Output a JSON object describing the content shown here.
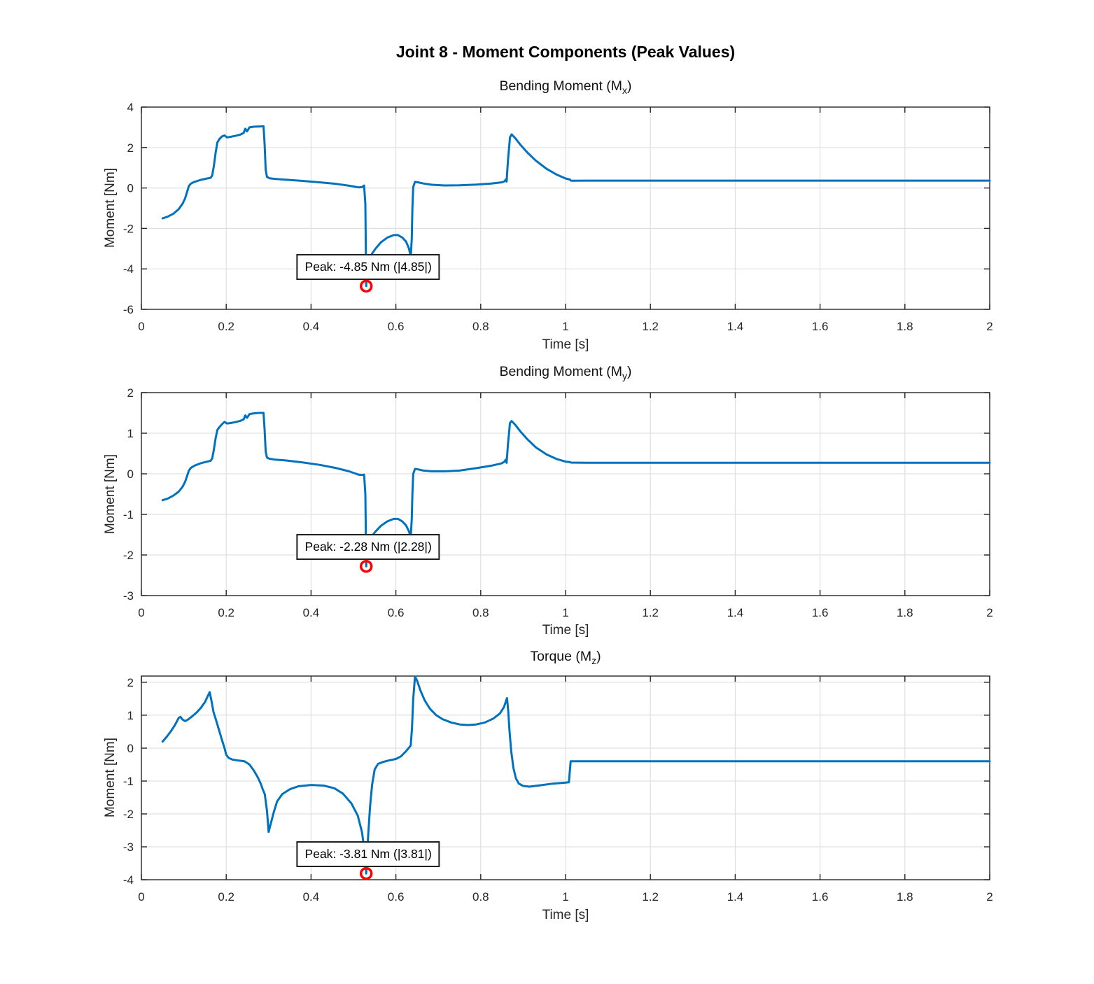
{
  "figure": {
    "title": "Joint 8 - Moment Components (Peak Values)"
  },
  "chart_data": [
    {
      "type": "line",
      "title": {
        "text": "Bending Moment (M",
        "sub": "x",
        "close": ")"
      },
      "xlabel": "Time [s]",
      "ylabel": "Moment [Nm]",
      "xlim": [
        0,
        2
      ],
      "ylim": [
        -6,
        4
      ],
      "xticks": [
        0,
        0.2,
        0.4,
        0.6,
        0.8,
        1,
        1.2,
        1.4,
        1.6,
        1.8,
        2
      ],
      "yticks": [
        4,
        2,
        0,
        -2,
        -4,
        -6
      ],
      "grid": true,
      "legend": "none",
      "line_color": "#0072BD",
      "peak": {
        "t": 0.53,
        "value": -4.85,
        "abs": 4.85,
        "label": "Peak: -4.85 Nm (|4.85|)",
        "marker_color": "#FF0000"
      },
      "series": [
        [
          0.05,
          -1.5
        ],
        [
          0.062,
          -1.42
        ],
        [
          0.075,
          -1.28
        ],
        [
          0.088,
          -1.05
        ],
        [
          0.097,
          -0.78
        ],
        [
          0.103,
          -0.52
        ],
        [
          0.108,
          -0.18
        ],
        [
          0.112,
          0.1
        ],
        [
          0.117,
          0.22
        ],
        [
          0.125,
          0.3
        ],
        [
          0.14,
          0.4
        ],
        [
          0.155,
          0.47
        ],
        [
          0.163,
          0.5
        ],
        [
          0.167,
          0.62
        ],
        [
          0.171,
          1.1
        ],
        [
          0.175,
          1.75
        ],
        [
          0.179,
          2.25
        ],
        [
          0.184,
          2.42
        ],
        [
          0.19,
          2.55
        ],
        [
          0.196,
          2.6
        ],
        [
          0.202,
          2.5
        ],
        [
          0.21,
          2.53
        ],
        [
          0.22,
          2.57
        ],
        [
          0.232,
          2.63
        ],
        [
          0.241,
          2.72
        ],
        [
          0.245,
          2.93
        ],
        [
          0.249,
          2.8
        ],
        [
          0.255,
          3.0
        ],
        [
          0.265,
          3.03
        ],
        [
          0.278,
          3.04
        ],
        [
          0.288,
          3.05
        ],
        [
          0.2905,
          2.2
        ],
        [
          0.293,
          0.9
        ],
        [
          0.296,
          0.55
        ],
        [
          0.302,
          0.48
        ],
        [
          0.315,
          0.45
        ],
        [
          0.34,
          0.41
        ],
        [
          0.38,
          0.35
        ],
        [
          0.42,
          0.28
        ],
        [
          0.46,
          0.2
        ],
        [
          0.49,
          0.11
        ],
        [
          0.512,
          0.03
        ],
        [
          0.52,
          0.04
        ],
        [
          0.525,
          0.12
        ],
        [
          0.528,
          -0.8
        ],
        [
          0.53,
          -4.85
        ],
        [
          0.532,
          -3.8
        ],
        [
          0.536,
          -3.45
        ],
        [
          0.542,
          -3.3
        ],
        [
          0.552,
          -3.0
        ],
        [
          0.565,
          -2.68
        ],
        [
          0.58,
          -2.45
        ],
        [
          0.595,
          -2.33
        ],
        [
          0.605,
          -2.33
        ],
        [
          0.615,
          -2.45
        ],
        [
          0.624,
          -2.65
        ],
        [
          0.631,
          -3.0
        ],
        [
          0.635,
          -3.42
        ],
        [
          0.6375,
          -2.5
        ],
        [
          0.639,
          -1.0
        ],
        [
          0.641,
          0.05
        ],
        [
          0.645,
          0.3
        ],
        [
          0.652,
          0.28
        ],
        [
          0.665,
          0.22
        ],
        [
          0.685,
          0.16
        ],
        [
          0.715,
          0.125
        ],
        [
          0.75,
          0.13
        ],
        [
          0.79,
          0.17
        ],
        [
          0.825,
          0.22
        ],
        [
          0.85,
          0.28
        ],
        [
          0.856,
          0.33
        ],
        [
          0.859,
          0.42
        ],
        [
          0.861,
          0.32
        ],
        [
          0.864,
          1.3
        ],
        [
          0.869,
          2.5
        ],
        [
          0.873,
          2.65
        ],
        [
          0.882,
          2.45
        ],
        [
          0.893,
          2.15
        ],
        [
          0.91,
          1.75
        ],
        [
          0.93,
          1.35
        ],
        [
          0.955,
          0.95
        ],
        [
          0.98,
          0.65
        ],
        [
          1.0,
          0.47
        ],
        [
          1.01,
          0.42
        ],
        [
          1.013,
          0.36
        ],
        [
          1.05,
          0.365
        ],
        [
          1.5,
          0.365
        ],
        [
          2.0,
          0.365
        ]
      ]
    },
    {
      "type": "line",
      "title": {
        "text": "Bending Moment (M",
        "sub": "y",
        "close": ")"
      },
      "xlabel": "Time [s]",
      "ylabel": "Moment [Nm]",
      "xlim": [
        0,
        2
      ],
      "ylim": [
        -3,
        2
      ],
      "xticks": [
        0,
        0.2,
        0.4,
        0.6,
        0.8,
        1,
        1.2,
        1.4,
        1.6,
        1.8,
        2
      ],
      "yticks": [
        2,
        1,
        0,
        -1,
        -2,
        -3
      ],
      "grid": true,
      "legend": "none",
      "line_color": "#0072BD",
      "peak": {
        "t": 0.53,
        "value": -2.28,
        "abs": 2.28,
        "label": "Peak: -2.28 Nm (|2.28|)",
        "marker_color": "#FF0000"
      },
      "series": [
        [
          0.05,
          -0.65
        ],
        [
          0.062,
          -0.61
        ],
        [
          0.075,
          -0.54
        ],
        [
          0.088,
          -0.44
        ],
        [
          0.097,
          -0.32
        ],
        [
          0.103,
          -0.2
        ],
        [
          0.108,
          -0.05
        ],
        [
          0.112,
          0.08
        ],
        [
          0.117,
          0.15
        ],
        [
          0.125,
          0.2
        ],
        [
          0.14,
          0.26
        ],
        [
          0.155,
          0.3
        ],
        [
          0.163,
          0.32
        ],
        [
          0.167,
          0.38
        ],
        [
          0.171,
          0.6
        ],
        [
          0.175,
          0.88
        ],
        [
          0.179,
          1.08
        ],
        [
          0.184,
          1.15
        ],
        [
          0.19,
          1.22
        ],
        [
          0.196,
          1.28
        ],
        [
          0.202,
          1.24
        ],
        [
          0.21,
          1.25
        ],
        [
          0.22,
          1.27
        ],
        [
          0.232,
          1.3
        ],
        [
          0.241,
          1.34
        ],
        [
          0.245,
          1.44
        ],
        [
          0.249,
          1.38
        ],
        [
          0.255,
          1.47
        ],
        [
          0.265,
          1.49
        ],
        [
          0.278,
          1.5
        ],
        [
          0.288,
          1.5
        ],
        [
          0.2905,
          1.1
        ],
        [
          0.293,
          0.55
        ],
        [
          0.296,
          0.4
        ],
        [
          0.302,
          0.37
        ],
        [
          0.315,
          0.35
        ],
        [
          0.34,
          0.33
        ],
        [
          0.38,
          0.28
        ],
        [
          0.42,
          0.22
        ],
        [
          0.46,
          0.14
        ],
        [
          0.49,
          0.06
        ],
        [
          0.512,
          -0.02
        ],
        [
          0.52,
          -0.03
        ],
        [
          0.525,
          -0.02
        ],
        [
          0.528,
          -0.5
        ],
        [
          0.53,
          -2.28
        ],
        [
          0.532,
          -1.8
        ],
        [
          0.536,
          -1.62
        ],
        [
          0.542,
          -1.55
        ],
        [
          0.552,
          -1.42
        ],
        [
          0.565,
          -1.28
        ],
        [
          0.58,
          -1.17
        ],
        [
          0.595,
          -1.11
        ],
        [
          0.605,
          -1.11
        ],
        [
          0.615,
          -1.17
        ],
        [
          0.624,
          -1.27
        ],
        [
          0.631,
          -1.42
        ],
        [
          0.635,
          -1.58
        ],
        [
          0.6375,
          -1.1
        ],
        [
          0.639,
          -0.5
        ],
        [
          0.641,
          0.0
        ],
        [
          0.645,
          0.12
        ],
        [
          0.652,
          0.11
        ],
        [
          0.665,
          0.08
        ],
        [
          0.685,
          0.06
        ],
        [
          0.715,
          0.06
        ],
        [
          0.75,
          0.08
        ],
        [
          0.79,
          0.14
        ],
        [
          0.825,
          0.2
        ],
        [
          0.85,
          0.26
        ],
        [
          0.856,
          0.3
        ],
        [
          0.859,
          0.35
        ],
        [
          0.861,
          0.27
        ],
        [
          0.864,
          0.7
        ],
        [
          0.869,
          1.25
        ],
        [
          0.873,
          1.3
        ],
        [
          0.882,
          1.2
        ],
        [
          0.893,
          1.05
        ],
        [
          0.91,
          0.85
        ],
        [
          0.93,
          0.65
        ],
        [
          0.955,
          0.48
        ],
        [
          0.98,
          0.36
        ],
        [
          1.0,
          0.3
        ],
        [
          1.01,
          0.29
        ],
        [
          1.013,
          0.275
        ],
        [
          1.05,
          0.27
        ],
        [
          1.5,
          0.27
        ],
        [
          2.0,
          0.27
        ]
      ]
    },
    {
      "type": "line",
      "title": {
        "text": "Torque (M",
        "sub": "z",
        "close": ")"
      },
      "xlabel": "Time [s]",
      "ylabel": "Moment [Nm]",
      "xlim": [
        0,
        2
      ],
      "ylim": [
        -4,
        2.19
      ],
      "xticks": [
        0,
        0.2,
        0.4,
        0.6,
        0.8,
        1,
        1.2,
        1.4,
        1.6,
        1.8,
        2
      ],
      "yticks": [
        2,
        1,
        0,
        -1,
        -2,
        -3,
        -4
      ],
      "grid": true,
      "legend": "none",
      "line_color": "#0072BD",
      "peak": {
        "t": 0.53,
        "value": -3.81,
        "abs": 3.81,
        "label": "Peak: -3.81 Nm (|3.81|)",
        "marker_color": "#FF0000"
      },
      "series": [
        [
          0.05,
          0.2
        ],
        [
          0.06,
          0.35
        ],
        [
          0.07,
          0.52
        ],
        [
          0.08,
          0.72
        ],
        [
          0.088,
          0.92
        ],
        [
          0.092,
          0.95
        ],
        [
          0.097,
          0.87
        ],
        [
          0.103,
          0.82
        ],
        [
          0.11,
          0.87
        ],
        [
          0.12,
          0.97
        ],
        [
          0.13,
          1.08
        ],
        [
          0.14,
          1.22
        ],
        [
          0.15,
          1.4
        ],
        [
          0.158,
          1.62
        ],
        [
          0.161,
          1.7
        ],
        [
          0.165,
          1.45
        ],
        [
          0.17,
          1.1
        ],
        [
          0.176,
          0.85
        ],
        [
          0.183,
          0.55
        ],
        [
          0.19,
          0.25
        ],
        [
          0.196,
          0.0
        ],
        [
          0.2,
          -0.2
        ],
        [
          0.206,
          -0.3
        ],
        [
          0.215,
          -0.35
        ],
        [
          0.23,
          -0.38
        ],
        [
          0.243,
          -0.4
        ],
        [
          0.248,
          -0.44
        ],
        [
          0.255,
          -0.5
        ],
        [
          0.265,
          -0.68
        ],
        [
          0.275,
          -0.9
        ],
        [
          0.282,
          -1.1
        ],
        [
          0.286,
          -1.25
        ],
        [
          0.291,
          -1.4
        ],
        [
          0.296,
          -1.9
        ],
        [
          0.3,
          -2.55
        ],
        [
          0.305,
          -2.3
        ],
        [
          0.312,
          -1.95
        ],
        [
          0.32,
          -1.62
        ],
        [
          0.332,
          -1.4
        ],
        [
          0.35,
          -1.25
        ],
        [
          0.37,
          -1.16
        ],
        [
          0.4,
          -1.12
        ],
        [
          0.43,
          -1.14
        ],
        [
          0.455,
          -1.22
        ],
        [
          0.475,
          -1.38
        ],
        [
          0.495,
          -1.68
        ],
        [
          0.51,
          -2.05
        ],
        [
          0.52,
          -2.55
        ],
        [
          0.527,
          -3.2
        ],
        [
          0.53,
          -3.81
        ],
        [
          0.534,
          -2.8
        ],
        [
          0.539,
          -1.8
        ],
        [
          0.544,
          -1.1
        ],
        [
          0.55,
          -0.65
        ],
        [
          0.558,
          -0.48
        ],
        [
          0.57,
          -0.42
        ],
        [
          0.585,
          -0.37
        ],
        [
          0.6,
          -0.33
        ],
        [
          0.612,
          -0.25
        ],
        [
          0.622,
          -0.12
        ],
        [
          0.63,
          0.0
        ],
        [
          0.635,
          0.08
        ],
        [
          0.638,
          0.6
        ],
        [
          0.641,
          1.5
        ],
        [
          0.645,
          2.18
        ],
        [
          0.65,
          2.05
        ],
        [
          0.658,
          1.75
        ],
        [
          0.668,
          1.45
        ],
        [
          0.68,
          1.2
        ],
        [
          0.695,
          1.0
        ],
        [
          0.71,
          0.88
        ],
        [
          0.73,
          0.78
        ],
        [
          0.75,
          0.72
        ],
        [
          0.77,
          0.7
        ],
        [
          0.79,
          0.72
        ],
        [
          0.81,
          0.78
        ],
        [
          0.83,
          0.9
        ],
        [
          0.845,
          1.05
        ],
        [
          0.855,
          1.25
        ],
        [
          0.86,
          1.45
        ],
        [
          0.862,
          1.52
        ],
        [
          0.865,
          1.1
        ],
        [
          0.868,
          0.5
        ],
        [
          0.872,
          -0.1
        ],
        [
          0.877,
          -0.6
        ],
        [
          0.883,
          -0.92
        ],
        [
          0.89,
          -1.08
        ],
        [
          0.9,
          -1.15
        ],
        [
          0.915,
          -1.17
        ],
        [
          0.94,
          -1.13
        ],
        [
          0.97,
          -1.08
        ],
        [
          1.0,
          -1.05
        ],
        [
          1.008,
          -1.04
        ],
        [
          1.012,
          -0.4
        ],
        [
          1.05,
          -0.4
        ],
        [
          1.5,
          -0.4
        ],
        [
          2.0,
          -0.4
        ]
      ]
    }
  ],
  "style": {
    "axis_color": "#262626",
    "grid_color": "#E0E0E0",
    "background": "#FFFFFF"
  }
}
